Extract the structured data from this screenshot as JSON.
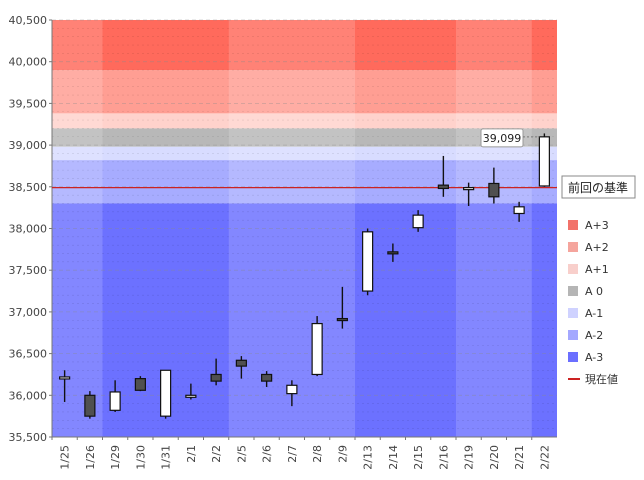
{
  "chart_data": {
    "type": "candlestick",
    "ylim": [
      35500,
      40500
    ],
    "yticks": [
      "35,500",
      "36,000",
      "36,500",
      "37,000",
      "37,500",
      "38,000",
      "38,500",
      "39,000",
      "39,500",
      "40,000",
      "40,500"
    ],
    "categories": [
      "1/25",
      "1/26",
      "1/29",
      "1/30",
      "1/31",
      "2/1",
      "2/2",
      "2/5",
      "2/6",
      "2/7",
      "2/8",
      "2/9",
      "2/13",
      "2/14",
      "2/15",
      "2/16",
      "2/19",
      "2/20",
      "2/21",
      "2/22"
    ],
    "candles": [
      {
        "o": 36220,
        "h": 36300,
        "l": 35920,
        "c": 36220
      },
      {
        "o": 36000,
        "h": 36050,
        "l": 35720,
        "c": 35750
      },
      {
        "o": 35820,
        "h": 36180,
        "l": 35800,
        "c": 36040
      },
      {
        "o": 36200,
        "h": 36230,
        "l": 36050,
        "c": 36060
      },
      {
        "o": 35750,
        "h": 36300,
        "l": 35720,
        "c": 36300
      },
      {
        "o": 36000,
        "h": 36140,
        "l": 35950,
        "c": 36000
      },
      {
        "o": 36250,
        "h": 36440,
        "l": 36120,
        "c": 36170
      },
      {
        "o": 36420,
        "h": 36470,
        "l": 36200,
        "c": 36350
      },
      {
        "o": 36250,
        "h": 36290,
        "l": 36100,
        "c": 36170
      },
      {
        "o": 36020,
        "h": 36180,
        "l": 35870,
        "c": 36120
      },
      {
        "o": 36250,
        "h": 36950,
        "l": 36230,
        "c": 36860
      },
      {
        "o": 36920,
        "h": 37300,
        "l": 36800,
        "c": 36900
      },
      {
        "o": 37250,
        "h": 38000,
        "l": 37200,
        "c": 37960
      },
      {
        "o": 37720,
        "h": 37820,
        "l": 37600,
        "c": 37700
      },
      {
        "o": 38010,
        "h": 38220,
        "l": 37960,
        "c": 38160
      },
      {
        "o": 38520,
        "h": 38870,
        "l": 38380,
        "c": 38480
      },
      {
        "o": 38470,
        "h": 38550,
        "l": 38270,
        "c": 38490
      },
      {
        "o": 38540,
        "h": 38730,
        "l": 38300,
        "c": 38380
      },
      {
        "o": 38180,
        "h": 38320,
        "l": 38080,
        "c": 38260
      },
      {
        "o": 38510,
        "h": 39140,
        "l": 38500,
        "c": 39099
      }
    ],
    "zones": [
      {
        "name": "A+3",
        "from": 39900,
        "to": 40500,
        "color": "#ff6a5c"
      },
      {
        "name": "A+2",
        "from": 39380,
        "to": 39900,
        "color": "#ff9e93"
      },
      {
        "name": "A+1",
        "from": 39200,
        "to": 39380,
        "color": "#ffd2cc"
      },
      {
        "name": "A 0",
        "from": 38980,
        "to": 39200,
        "color": "#b8b8b8"
      },
      {
        "name": "A-1",
        "from": 38820,
        "to": 38980,
        "color": "#d8dcff"
      },
      {
        "name": "A-2",
        "from": 38300,
        "to": 38820,
        "color": "#a7acff"
      },
      {
        "name": "A-3",
        "from": 35500,
        "to": 38300,
        "color": "#6c71ff"
      }
    ],
    "reference_line": {
      "value": 38490,
      "label": "前回の基準",
      "color": "#cc2222"
    },
    "current_value_label": "39,099",
    "legend": [
      {
        "name": "A+3",
        "color": "#f2726a"
      },
      {
        "name": "A+2",
        "color": "#f5a59d"
      },
      {
        "name": "A+1",
        "color": "#f8cfcb"
      },
      {
        "name": "A 0",
        "color": "#b5b5b5"
      },
      {
        "name": "A-1",
        "color": "#cfd2ff"
      },
      {
        "name": "A-2",
        "color": "#a4a8ff"
      },
      {
        "name": "A-3",
        "color": "#6b6fff"
      },
      {
        "name": "現在値",
        "color": "#cc2222",
        "line": true
      }
    ],
    "week_shading": [
      {
        "start": 0,
        "end": 1
      },
      {
        "start": 7,
        "end": 11
      },
      {
        "start": 16,
        "end": 18
      }
    ]
  }
}
